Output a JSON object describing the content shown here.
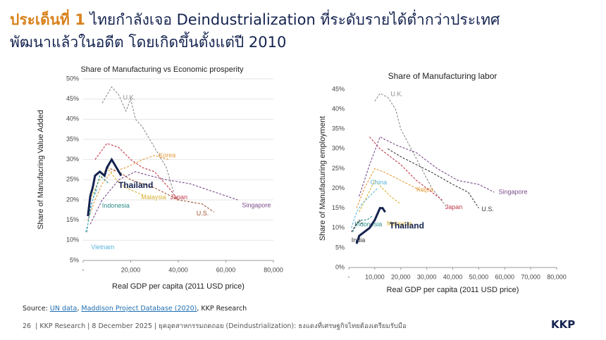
{
  "header": {
    "highlight": "ประเด็นที่ 1",
    "title_line1": "ไทยกำลังเจอ Deindustrialization ที่ระดับรายได้ต่ำกว่าประเทศ",
    "title_line2": "พัฒนาแล้วในอดีต โดยเกิดขึ้นตั้งแต่ปี 2010"
  },
  "chart_data": [
    {
      "type": "line",
      "title": "Share of Manufacturing vs Economic prosperity",
      "x_label": "Real GDP per capita (2011 USD price)",
      "y_label": "Share of Manufacring Value Added",
      "grid": true,
      "xlim": [
        0,
        80000
      ],
      "ylim": [
        5,
        50
      ],
      "xticks": [
        {
          "value": 0,
          "label": "-"
        },
        {
          "value": 20000,
          "label": "20,000"
        },
        {
          "value": 40000,
          "label": "40,000"
        },
        {
          "value": 60000,
          "label": "60,000"
        },
        {
          "value": 80000,
          "label": "80,000"
        }
      ],
      "yticks": [
        {
          "value": 5,
          "label": "5%"
        },
        {
          "value": 10,
          "label": "10%"
        },
        {
          "value": 15,
          "label": "15%"
        },
        {
          "value": 20,
          "label": "20%"
        },
        {
          "value": 25,
          "label": "25%"
        },
        {
          "value": 30,
          "label": "30%"
        },
        {
          "value": 35,
          "label": "35%"
        },
        {
          "value": 40,
          "label": "40%"
        },
        {
          "value": 45,
          "label": "45%"
        },
        {
          "value": 50,
          "label": "50%"
        }
      ],
      "series": [
        {
          "name": "U.K.",
          "color": "#8c8c8c",
          "style": "dashed",
          "x": [
            8000,
            12000,
            15000,
            18000,
            20000,
            22000,
            25000,
            30000,
            35000,
            38000
          ],
          "values": [
            44,
            48,
            46,
            42,
            45,
            40,
            38,
            33,
            28,
            22
          ]
        },
        {
          "name": "Korea",
          "color": "#e59b3c",
          "style": "dashed",
          "x": [
            2000,
            5000,
            8000,
            12000,
            18000,
            25000,
            30000,
            36000
          ],
          "values": [
            15,
            20,
            24,
            27,
            28,
            30,
            31,
            30
          ]
        },
        {
          "name": "Malaysia",
          "color": "#d9b233",
          "style": "dashed",
          "x": [
            3000,
            6000,
            10000,
            14000,
            18000,
            22000,
            26000
          ],
          "values": [
            20,
            24,
            28,
            25,
            23,
            22,
            21
          ]
        },
        {
          "name": "Japan",
          "color": "#c0394b",
          "style": "dashed",
          "x": [
            5000,
            10000,
            15000,
            20000,
            25000,
            30000,
            36000,
            40000
          ],
          "values": [
            30,
            34,
            33,
            30,
            28,
            27,
            23,
            20
          ]
        },
        {
          "name": "U.S.",
          "color": "#a0522d",
          "style": "dashed",
          "x": [
            10000,
            15000,
            20000,
            30000,
            40000,
            50000,
            55000
          ],
          "values": [
            28,
            27,
            25,
            23,
            20,
            19,
            17
          ]
        },
        {
          "name": "Singapore",
          "color": "#7a4b8c",
          "style": "dashed",
          "x": [
            3000,
            8000,
            15000,
            22000,
            28000,
            35000,
            45000,
            55000,
            65000
          ],
          "values": [
            14,
            20,
            25,
            27,
            26,
            25,
            24,
            22,
            20
          ]
        },
        {
          "name": "Indonesia",
          "color": "#2a8a8a",
          "style": "dashed",
          "x": [
            1500,
            3000,
            5000,
            7000,
            9000,
            11000
          ],
          "values": [
            12,
            18,
            22,
            26,
            25,
            24
          ]
        },
        {
          "name": "Vietnam",
          "color": "#5bb5d9",
          "style": "dashed",
          "x": [
            1000,
            2000,
            3000,
            4000,
            6000
          ],
          "values": [
            12,
            14,
            17,
            20,
            23
          ]
        },
        {
          "name": "Thailand",
          "color": "#14234f",
          "style": "solid",
          "x": [
            2000,
            3000,
            4000,
            5000,
            7000,
            9000,
            10000,
            12000,
            13000,
            15000,
            16000
          ],
          "values": [
            16,
            21,
            23,
            26,
            27,
            26,
            28,
            30,
            29,
            27,
            26
          ]
        }
      ]
    },
    {
      "type": "line",
      "title": "Share of Manufacturing labor",
      "x_label": "Real GDP per capita (2011 USD price)",
      "y_label": "Share of Manufacturing employment",
      "grid": false,
      "xlim": [
        0,
        80000
      ],
      "ylim": [
        0,
        45
      ],
      "xticks": [
        {
          "value": 0,
          "label": "-"
        },
        {
          "value": 10000,
          "label": "10,000"
        },
        {
          "value": 20000,
          "label": "20,000"
        },
        {
          "value": 30000,
          "label": "30,000"
        },
        {
          "value": 40000,
          "label": "40,000"
        },
        {
          "value": 50000,
          "label": "50,000"
        },
        {
          "value": 60000,
          "label": "60,000"
        },
        {
          "value": 70000,
          "label": "70,000"
        },
        {
          "value": 80000,
          "label": "80,000"
        }
      ],
      "yticks": [
        {
          "value": 0,
          "label": "0%"
        },
        {
          "value": 5,
          "label": "5%"
        },
        {
          "value": 10,
          "label": "10%"
        },
        {
          "value": 15,
          "label": "15%"
        },
        {
          "value": 20,
          "label": "20%"
        },
        {
          "value": 25,
          "label": "25%"
        },
        {
          "value": 30,
          "label": "30%"
        },
        {
          "value": 35,
          "label": "35%"
        },
        {
          "value": 40,
          "label": "40%"
        },
        {
          "value": 45,
          "label": "45%"
        }
      ],
      "series": [
        {
          "name": "U.K.",
          "color": "#8c8c8c",
          "style": "dashed",
          "x": [
            10000,
            12000,
            15000,
            18000,
            20000,
            24000,
            28000,
            32000,
            38000
          ],
          "values": [
            42,
            44,
            43,
            40,
            35,
            30,
            25,
            20,
            15
          ]
        },
        {
          "name": "Korea",
          "color": "#e59b3c",
          "style": "dashed",
          "x": [
            3000,
            6000,
            10000,
            14000,
            20000,
            26000,
            30000
          ],
          "values": [
            15,
            20,
            25,
            24,
            22,
            20,
            19
          ]
        },
        {
          "name": "Malaysia",
          "color": "#d9b233",
          "style": "dashed",
          "x": [
            4000,
            7000,
            10000,
            13000,
            16000,
            20000
          ],
          "values": [
            14,
            18,
            22,
            20,
            18,
            16
          ]
        },
        {
          "name": "Japan",
          "color": "#c0394b",
          "style": "dashed",
          "x": [
            8000,
            12000,
            16000,
            20000,
            26000,
            30000,
            36000
          ],
          "values": [
            33,
            30,
            28,
            26,
            22,
            20,
            17
          ]
        },
        {
          "name": "U.S.",
          "color": "#3b3b3b",
          "style": "dashed",
          "x": [
            15000,
            20000,
            26000,
            32000,
            40000,
            46000,
            50000
          ],
          "values": [
            30,
            28,
            26,
            24,
            21,
            19,
            15
          ]
        },
        {
          "name": "Singapore",
          "color": "#7a4b8c",
          "style": "dashed",
          "x": [
            4000,
            8000,
            12000,
            18000,
            26000,
            34000,
            42000,
            50000,
            56000
          ],
          "values": [
            18,
            26,
            33,
            31,
            29,
            25,
            22,
            21,
            19
          ]
        },
        {
          "name": "China",
          "color": "#5bb5d9",
          "style": "dashed",
          "x": [
            1000,
            3000,
            5000,
            8000,
            11000
          ],
          "values": [
            10,
            14,
            16,
            18,
            20
          ]
        },
        {
          "name": "Indonesia",
          "color": "#2a8a8a",
          "style": "dashed",
          "x": [
            1500,
            3000,
            5000,
            7000,
            9000
          ],
          "values": [
            9,
            11,
            12,
            12,
            13
          ]
        },
        {
          "name": "India",
          "color": "#333333",
          "style": "dashed",
          "x": [
            1000,
            2000,
            3000,
            4000,
            5000
          ],
          "values": [
            9,
            10,
            11,
            12,
            11
          ]
        },
        {
          "name": "Thailand",
          "color": "#14234f",
          "style": "solid",
          "x": [
            3000,
            4000,
            6000,
            8000,
            10000,
            12000,
            13000,
            14000
          ],
          "values": [
            6,
            8,
            9,
            10,
            12,
            15,
            15,
            14
          ]
        }
      ]
    }
  ],
  "source": {
    "prefix": "Source: ",
    "link1": "UN data",
    "sep": ", ",
    "link2": "Maddison Project Database (2020)",
    "suffix": ", KKP Research"
  },
  "footer": {
    "page": "26",
    "text": "| KKP Research | 8 December 2025 | ยุคอุตสาหกรรมถดถอย (Deindustrialization): ธงแดงที่เศรษฐกิจไทยต้องเตรียมรับมือ",
    "logo": "KKP"
  }
}
